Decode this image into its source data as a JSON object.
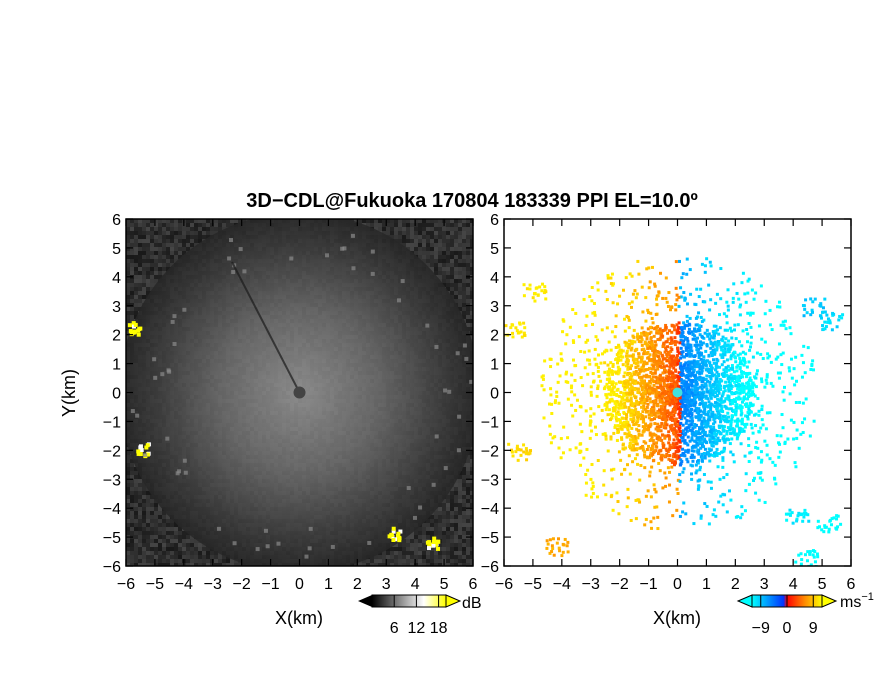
{
  "title": "3D−CDL@Fukuoka 170804 183339 PPI EL=10.0º",
  "chart_data": [
    {
      "type": "heatmap",
      "panel": "reflectivity",
      "xlabel": "X(km)",
      "ylabel": "Y(km)",
      "xlim": [
        -6,
        6
      ],
      "ylim": [
        -6,
        6
      ],
      "xticks": [
        "−6",
        "−5",
        "−4",
        "−3",
        "−2",
        "−1",
        "0",
        "1",
        "2",
        "3",
        "4",
        "5",
        "6"
      ],
      "yticks": [
        "−6",
        "−5",
        "−4",
        "−3",
        "−2",
        "−1",
        "0",
        "1",
        "2",
        "3",
        "4",
        "5",
        "6"
      ],
      "colorbar": {
        "unit": "dB",
        "ticks": [
          "6",
          "12",
          "18"
        ],
        "tick_values": [
          6,
          12,
          18
        ],
        "range": [
          0,
          20
        ],
        "colors": [
          "#000000",
          "#ffffff",
          "#ffff00"
        ]
      },
      "highlights": [
        {
          "x": -5.7,
          "y": 2.2,
          "value": 18
        },
        {
          "x": -5.4,
          "y": -2.0,
          "value": 18
        },
        {
          "x": 4.6,
          "y": -5.25,
          "value": 18
        },
        {
          "x": 3.3,
          "y": -4.9,
          "value": 17
        }
      ]
    },
    {
      "type": "heatmap",
      "panel": "doppler velocity",
      "xlabel": "X(km)",
      "xlim": [
        -6,
        6
      ],
      "ylim": [
        -6,
        6
      ],
      "xticks": [
        "−6",
        "−5",
        "−4",
        "−3",
        "−2",
        "−1",
        "0",
        "1",
        "2",
        "3",
        "4",
        "5",
        "6"
      ],
      "yticks": [
        "−6",
        "−5",
        "−4",
        "−3",
        "−2",
        "−1",
        "0",
        "1",
        "2",
        "3",
        "4",
        "5",
        "6"
      ],
      "colorbar": {
        "unit": "ms",
        "unit_exp": "−1",
        "ticks": [
          "−9",
          "0",
          "9"
        ],
        "tick_values": [
          -9,
          0,
          9
        ],
        "range": [
          -12,
          12
        ],
        "colors": [
          "#00ffff",
          "#0044ff",
          "#ff0000",
          "#ff8800",
          "#ffff00"
        ]
      }
    }
  ]
}
